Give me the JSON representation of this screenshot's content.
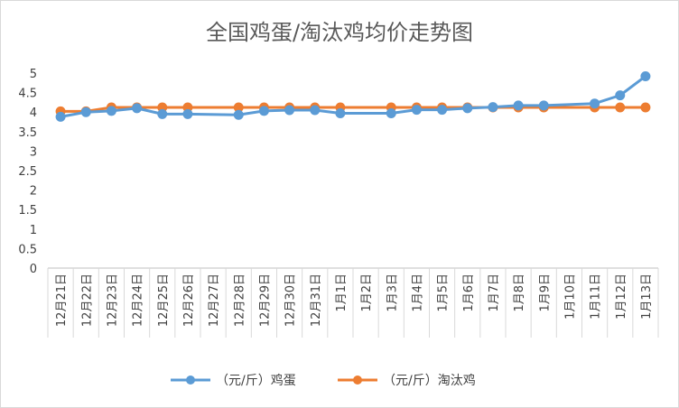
{
  "chart_data": {
    "type": "line",
    "title": "全国鸡蛋/淘汰鸡均价走势图",
    "xlabel": "",
    "ylabel": "",
    "ylim": [
      0,
      5
    ],
    "yticks": [
      "0",
      "0.5",
      "1",
      "1.5",
      "2",
      "2.5",
      "3",
      "3.5",
      "4",
      "4.5",
      "5"
    ],
    "grid": false,
    "legend_position": "bottom",
    "categories": [
      "12月21日",
      "12月22日",
      "12月23日",
      "12月24日",
      "12月25日",
      "12月26日",
      "12月27日",
      "12月28日",
      "12月29日",
      "12月30日",
      "12月31日",
      "1月1日",
      "1月2日",
      "1月3日",
      "1月4日",
      "1月5日",
      "1月6日",
      "1月7日",
      "1月8日",
      "1月9日",
      "1月10日",
      "1月11日",
      "1月12日",
      "1月13日"
    ],
    "series": [
      {
        "name": "（元/斤）鸡蛋",
        "color": "#5B9BD5",
        "values": [
          3.88,
          4.0,
          4.03,
          4.1,
          3.95,
          3.95,
          null,
          3.93,
          4.03,
          4.05,
          4.05,
          3.97,
          null,
          3.97,
          4.06,
          4.06,
          4.1,
          4.13,
          4.17,
          4.17,
          null,
          4.22,
          4.43,
          4.92
        ]
      },
      {
        "name": "（元/斤）淘汰鸡",
        "color": "#ED7D31",
        "values": [
          4.02,
          4.02,
          4.12,
          4.12,
          4.12,
          4.12,
          null,
          4.12,
          4.12,
          4.12,
          4.12,
          4.12,
          null,
          4.12,
          4.12,
          4.12,
          4.12,
          4.12,
          4.12,
          4.12,
          null,
          4.12,
          4.12,
          4.12
        ]
      }
    ]
  }
}
